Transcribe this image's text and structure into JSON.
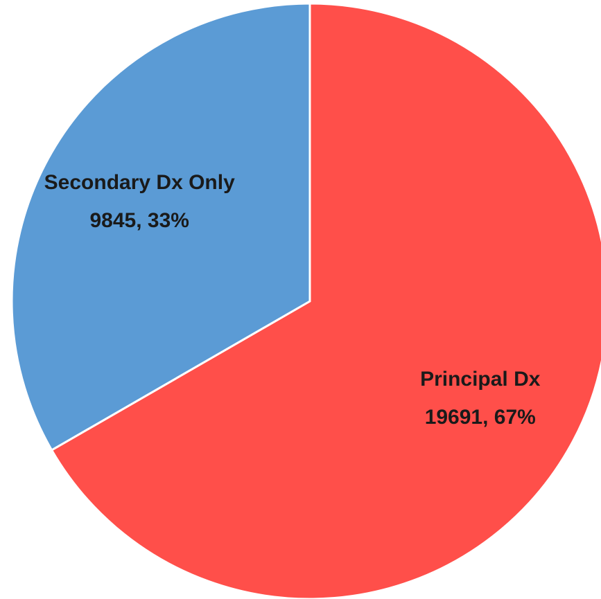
{
  "chart_data": {
    "type": "pie",
    "categories": [
      "Principal Dx",
      "Secondary Dx Only"
    ],
    "values": [
      19691,
      9845
    ],
    "value_labels": [
      "19691, 67%",
      "9845, 33%"
    ],
    "colors": [
      "#ff4f4a",
      "#5b9bd5"
    ]
  }
}
